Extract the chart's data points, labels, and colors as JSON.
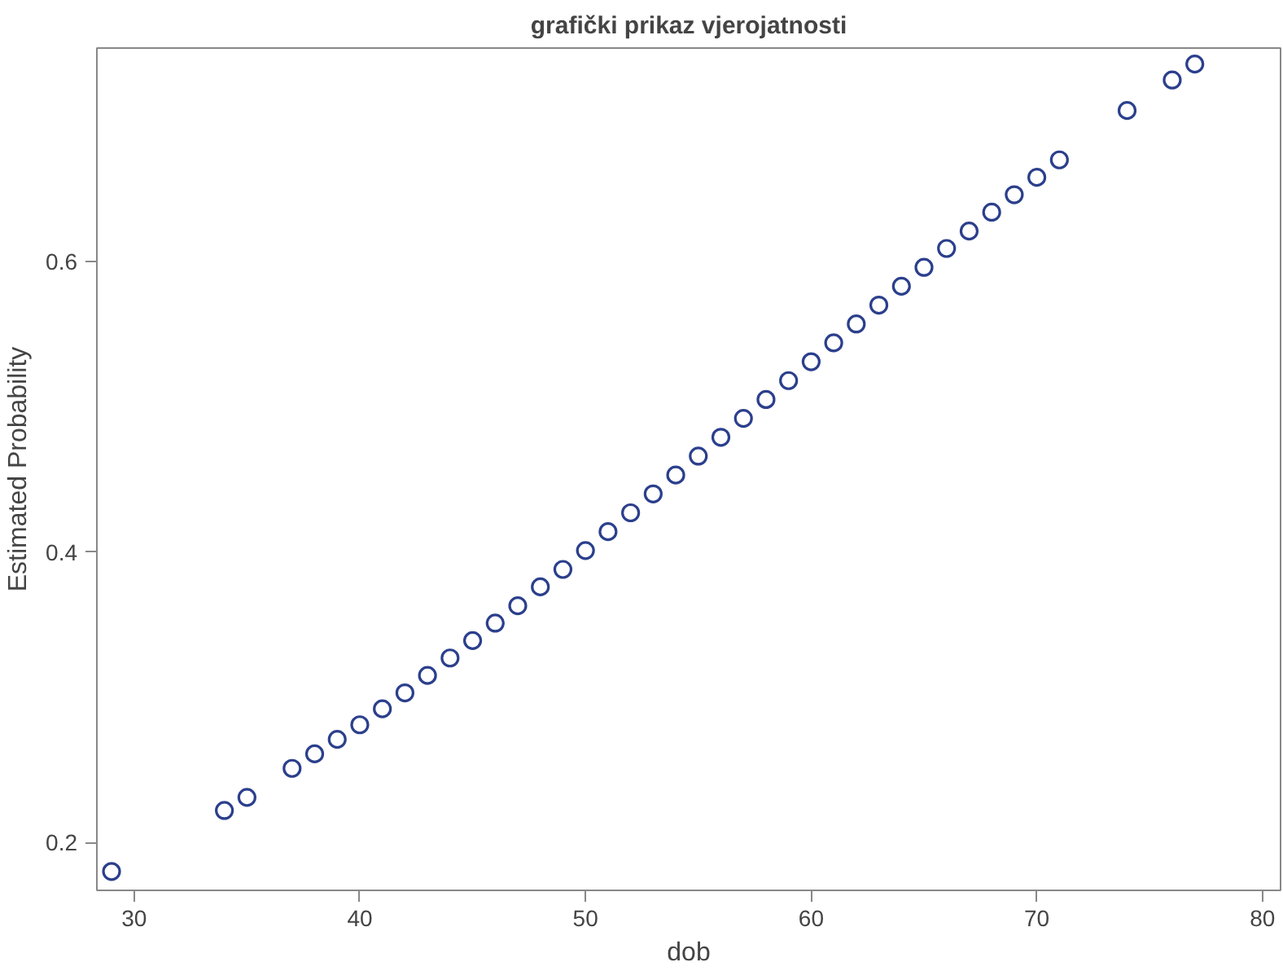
{
  "chart_data": {
    "type": "scatter",
    "title": "grafički prikaz vjerojatnosti",
    "xlabel": "dob",
    "ylabel": "Estimated Probability",
    "x": [
      29,
      34,
      35,
      37,
      38,
      39,
      40,
      41,
      42,
      43,
      44,
      45,
      46,
      47,
      48,
      49,
      50,
      51,
      52,
      53,
      54,
      55,
      56,
      57,
      58,
      59,
      60,
      61,
      62,
      63,
      64,
      65,
      66,
      67,
      68,
      69,
      70,
      71,
      74,
      76,
      77
    ],
    "series": [
      {
        "color": "#2b3f8c",
        "values": [
          0.18,
          0.222,
          0.231,
          0.251,
          0.261,
          0.271,
          0.281,
          0.292,
          0.303,
          0.315,
          0.327,
          0.339,
          0.351,
          0.363,
          0.376,
          0.388,
          0.401,
          0.414,
          0.427,
          0.44,
          0.453,
          0.466,
          0.479,
          0.492,
          0.505,
          0.518,
          0.531,
          0.544,
          0.557,
          0.57,
          0.583,
          0.596,
          0.609,
          0.621,
          0.634,
          0.646,
          0.658,
          0.67,
          0.704,
          0.725,
          0.736
        ]
      }
    ],
    "xlim": [
      28.35,
      80.8
    ],
    "ylim": [
      0.167,
      0.747
    ],
    "xticks": [
      30,
      40,
      50,
      60,
      70,
      80
    ],
    "yticks": [
      0.2,
      0.4,
      0.6
    ],
    "marker": "circle",
    "grid": false
  }
}
